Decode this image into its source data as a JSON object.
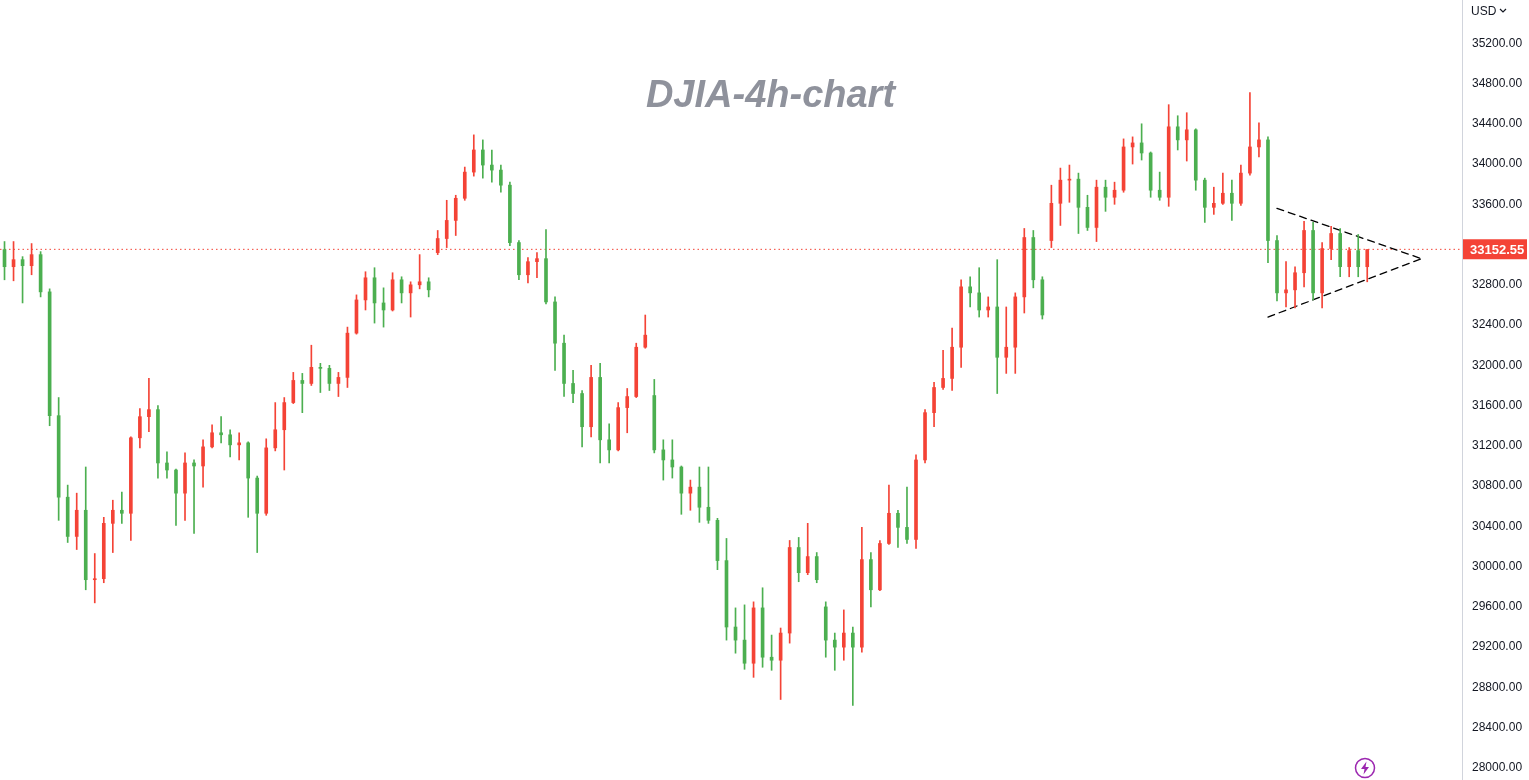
{
  "chart_data": {
    "type": "candlestick",
    "title": "DJIA-4h-chart",
    "ylabel": "USD",
    "categories": [
      null,
      null,
      null,
      null,
      null,
      null,
      null,
      null,
      null,
      null,
      null,
      null,
      null,
      null,
      null,
      null,
      null,
      null,
      null,
      null,
      null,
      null,
      null,
      null,
      null,
      null,
      null,
      null,
      null,
      null,
      null,
      null,
      null,
      null,
      null,
      null,
      null,
      null,
      null,
      null,
      null,
      null,
      null,
      null,
      null,
      null,
      null,
      null,
      null,
      null,
      null,
      null,
      null,
      null,
      null,
      null,
      null,
      null,
      null,
      null,
      null,
      null,
      null,
      null,
      null,
      null,
      null,
      null,
      null,
      null,
      null,
      null,
      null,
      null,
      null,
      null,
      null,
      null,
      null,
      null,
      null,
      null,
      null,
      null,
      null,
      null,
      null,
      null,
      null,
      null,
      null,
      null,
      null,
      null,
      null,
      null,
      null,
      null,
      null,
      null,
      null,
      null,
      null,
      null,
      null,
      null,
      null,
      null,
      null,
      null,
      null,
      null,
      null,
      null,
      null,
      null,
      null,
      null,
      null,
      null,
      null,
      null,
      null,
      null,
      null,
      null,
      null,
      null,
      null,
      null,
      null,
      null,
      null,
      null,
      null,
      null,
      null,
      null,
      null,
      null,
      null,
      null,
      null,
      null,
      null,
      null,
      null,
      null,
      null,
      null,
      null,
      null,
      null,
      null,
      null,
      null,
      null,
      null,
      null,
      null,
      null,
      null
    ],
    "ohlc": [
      [
        33150,
        33230,
        32850,
        32980
      ],
      [
        32980,
        33230,
        32840,
        33050
      ],
      [
        33050,
        33080,
        32620,
        32990
      ],
      [
        32990,
        33210,
        32900,
        33100
      ],
      [
        33100,
        33130,
        32680,
        32730
      ],
      [
        32730,
        32760,
        31400,
        31500
      ],
      [
        31500,
        31680,
        30460,
        30690
      ],
      [
        30690,
        30810,
        30240,
        30300
      ],
      [
        30300,
        30730,
        30170,
        30560
      ],
      [
        30560,
        30990,
        29770,
        29870
      ],
      [
        29870,
        30130,
        29640,
        29880
      ],
      [
        29880,
        30490,
        29840,
        30430
      ],
      [
        30430,
        30660,
        30140,
        30560
      ],
      [
        30560,
        30740,
        30430,
        30530
      ],
      [
        30530,
        31290,
        30260,
        31280
      ],
      [
        31280,
        31570,
        31180,
        31490
      ],
      [
        31490,
        31870,
        31340,
        31560
      ],
      [
        31560,
        31600,
        30880,
        31030
      ],
      [
        31030,
        31140,
        30880,
        30960
      ],
      [
        30960,
        30970,
        30410,
        30730
      ],
      [
        30730,
        31130,
        30460,
        31030
      ],
      [
        31030,
        31060,
        30330,
        31000
      ],
      [
        31000,
        31260,
        30790,
        31190
      ],
      [
        31190,
        31410,
        31180,
        31330
      ],
      [
        31330,
        31490,
        31230,
        31310
      ],
      [
        31310,
        31360,
        31090,
        31210
      ],
      [
        31210,
        31330,
        31060,
        31230
      ],
      [
        31230,
        31240,
        30490,
        30880
      ],
      [
        30880,
        30900,
        30140,
        30530
      ],
      [
        30530,
        31270,
        30510,
        31180
      ],
      [
        31180,
        31630,
        31150,
        31360
      ],
      [
        31360,
        31680,
        30960,
        31630
      ],
      [
        31630,
        31930,
        31620,
        31850
      ],
      [
        31850,
        31920,
        31530,
        31820
      ],
      [
        31820,
        32200,
        31800,
        31980
      ],
      [
        31980,
        32020,
        31730,
        31970
      ],
      [
        31970,
        32000,
        31750,
        31820
      ],
      [
        31820,
        31930,
        31690,
        31880
      ],
      [
        31880,
        32380,
        31780,
        32320
      ],
      [
        32320,
        32700,
        32310,
        32650
      ],
      [
        32650,
        32930,
        32550,
        32870
      ],
      [
        32870,
        32970,
        32420,
        32620
      ],
      [
        32620,
        32770,
        32380,
        32550
      ],
      [
        32550,
        32920,
        32540,
        32850
      ],
      [
        32850,
        32880,
        32620,
        32720
      ],
      [
        32720,
        32830,
        32480,
        32800
      ],
      [
        32800,
        33100,
        32760,
        32830
      ],
      [
        32830,
        32870,
        32680,
        32750
      ],
      [
        33120,
        33340,
        33100,
        33260
      ],
      [
        33260,
        33640,
        33170,
        33440
      ],
      [
        33440,
        33690,
        33290,
        33660
      ],
      [
        33660,
        33970,
        33640,
        33920
      ],
      [
        33920,
        34290,
        33880,
        34140
      ],
      [
        34140,
        34240,
        33860,
        33990
      ],
      [
        33990,
        34140,
        33820,
        33940
      ],
      [
        33940,
        33990,
        33720,
        33790
      ],
      [
        33790,
        33820,
        33190,
        33220
      ],
      [
        33220,
        33240,
        32850,
        32900
      ],
      [
        32900,
        33070,
        32820,
        33030
      ],
      [
        33030,
        33120,
        32870,
        33060
      ],
      [
        33060,
        33350,
        32610,
        32630
      ],
      [
        32630,
        32680,
        31950,
        32220
      ],
      [
        32220,
        32300,
        31690,
        31820
      ],
      [
        31820,
        31950,
        31630,
        31720
      ],
      [
        31720,
        31750,
        31190,
        31390
      ],
      [
        31390,
        32000,
        31290,
        31880
      ],
      [
        31880,
        32020,
        31030,
        31260
      ],
      [
        31260,
        31420,
        31030,
        31160
      ],
      [
        31160,
        31630,
        31150,
        31580
      ],
      [
        31580,
        31770,
        31330,
        31690
      ],
      [
        31690,
        32220,
        31680,
        32180
      ],
      [
        32180,
        32500,
        32170,
        32300
      ],
      [
        31700,
        31860,
        31130,
        31160
      ],
      [
        31160,
        31260,
        30860,
        31060
      ],
      [
        31060,
        31260,
        30880,
        30990
      ],
      [
        30990,
        31000,
        30520,
        30730
      ],
      [
        30730,
        30860,
        30560,
        30790
      ],
      [
        30790,
        30990,
        30440,
        30590
      ],
      [
        30590,
        30990,
        30430,
        30460
      ],
      [
        30460,
        30480,
        29970,
        30060
      ],
      [
        30060,
        30280,
        29270,
        29400
      ],
      [
        29400,
        29590,
        29140,
        29270
      ],
      [
        29270,
        29620,
        28980,
        29040
      ],
      [
        29040,
        29650,
        28900,
        29590
      ],
      [
        29590,
        29790,
        29000,
        29100
      ],
      [
        29100,
        29320,
        28970,
        29070
      ],
      [
        29070,
        29390,
        28680,
        29340
      ],
      [
        29340,
        30260,
        29240,
        30190
      ],
      [
        30190,
        30290,
        29850,
        29940
      ],
      [
        29940,
        30430,
        29920,
        30100
      ],
      [
        30100,
        30140,
        29840,
        29870
      ],
      [
        29600,
        29650,
        29100,
        29270
      ],
      [
        29270,
        29340,
        28970,
        29200
      ],
      [
        29200,
        29570,
        29070,
        29340
      ],
      [
        29340,
        29400,
        28620,
        29200
      ],
      [
        29200,
        30390,
        29150,
        30070
      ],
      [
        30070,
        30140,
        29600,
        29770
      ],
      [
        29770,
        30260,
        29760,
        30230
      ],
      [
        30230,
        30810,
        30220,
        30530
      ],
      [
        30530,
        30560,
        30190,
        30390
      ],
      [
        30390,
        30790,
        30230,
        30270
      ],
      [
        30270,
        31110,
        30180,
        31060
      ],
      [
        31060,
        31560,
        31030,
        31530
      ],
      [
        31530,
        31830,
        31390,
        31780
      ],
      [
        31780,
        32150,
        31760,
        31870
      ],
      [
        31870,
        32370,
        31750,
        32180
      ],
      [
        32180,
        32850,
        31980,
        32780
      ],
      [
        32780,
        32880,
        32580,
        32720
      ],
      [
        32720,
        32970,
        32480,
        32550
      ],
      [
        32550,
        32680,
        32480,
        32580
      ],
      [
        32580,
        33050,
        31720,
        32080
      ],
      [
        32080,
        32580,
        31920,
        32180
      ],
      [
        32180,
        32720,
        31920,
        32680
      ],
      [
        32680,
        33360,
        32520,
        33270
      ],
      [
        33270,
        33340,
        32770,
        32850
      ],
      [
        32850,
        32880,
        32460,
        32500
      ],
      [
        33240,
        33790,
        33170,
        33610
      ],
      [
        33610,
        33960,
        33390,
        33840
      ],
      [
        33840,
        33990,
        33620,
        33850
      ],
      [
        33850,
        33910,
        33310,
        33570
      ],
      [
        33570,
        33690,
        33340,
        33370
      ],
      [
        33370,
        33840,
        33230,
        33770
      ],
      [
        33770,
        33840,
        33530,
        33670
      ],
      [
        33670,
        33820,
        33600,
        33740
      ],
      [
        33740,
        34250,
        33720,
        34170
      ],
      [
        34170,
        34270,
        34000,
        34210
      ],
      [
        34210,
        34400,
        34040,
        34110
      ],
      [
        34110,
        34120,
        33670,
        33740
      ],
      [
        33740,
        33920,
        33640,
        33670
      ],
      [
        33670,
        34590,
        33580,
        34370
      ],
      [
        34370,
        34480,
        34140,
        34240
      ],
      [
        34240,
        34510,
        34030,
        34340
      ],
      [
        34340,
        34350,
        33740,
        33840
      ],
      [
        33840,
        33860,
        33420,
        33570
      ],
      [
        33570,
        33770,
        33500,
        33610
      ],
      [
        33610,
        33910,
        33600,
        33710
      ],
      [
        33710,
        33840,
        33440,
        33610
      ],
      [
        33610,
        33990,
        33590,
        33910
      ],
      [
        33910,
        34710,
        33890,
        34170
      ],
      [
        34170,
        34410,
        34070,
        34240
      ],
      [
        34240,
        34270,
        33020,
        33240
      ],
      [
        33240,
        33290,
        32640,
        32720
      ],
      [
        32720,
        33030,
        32580,
        32750
      ],
      [
        32750,
        32980,
        32570,
        32920
      ],
      [
        32920,
        33430,
        32780,
        33340
      ],
      [
        33340,
        33420,
        32650,
        32720
      ],
      [
        32720,
        33220,
        32570,
        33160
      ],
      [
        33160,
        33380,
        33050,
        33310
      ],
      [
        33310,
        33360,
        32880,
        32980
      ],
      [
        32980,
        33170,
        32880,
        33140
      ],
      [
        33140,
        33300,
        32880,
        32980
      ],
      [
        32980,
        33150,
        32830,
        33150
      ],
      null,
      null,
      null,
      null,
      null,
      null,
      null,
      null,
      null,
      null
    ],
    "colors": [
      "#4caf50",
      "#f44336",
      "#4caf50",
      "#f44336",
      "#4caf50",
      "#4caf50",
      "#4caf50",
      "#4caf50",
      "#f44336",
      "#4caf50",
      "#f44336",
      "#f44336",
      "#f44336",
      "#4caf50",
      "#f44336",
      "#f44336",
      "#f44336",
      "#4caf50",
      "#4caf50",
      "#4caf50",
      "#f44336",
      "#4caf50",
      "#f44336",
      "#f44336",
      "#4caf50",
      "#4caf50",
      "#f44336",
      "#4caf50",
      "#4caf50",
      "#f44336",
      "#f44336",
      "#f44336",
      "#f44336",
      "#4caf50",
      "#f44336",
      "#4caf50",
      "#4caf50",
      "#f44336",
      "#f44336",
      "#f44336",
      "#f44336",
      "#4caf50",
      "#4caf50",
      "#f44336",
      "#4caf50",
      "#f44336",
      "#f44336",
      "#4caf50",
      "#f44336",
      "#f44336",
      "#f44336",
      "#f44336",
      "#f44336",
      "#4caf50",
      "#4caf50",
      "#4caf50",
      "#4caf50",
      "#4caf50",
      "#f44336",
      "#f44336",
      "#4caf50",
      "#4caf50",
      "#4caf50",
      "#4caf50",
      "#4caf50",
      "#f44336",
      "#4caf50",
      "#4caf50",
      "#f44336",
      "#f44336",
      "#f44336",
      "#f44336",
      "#4caf50",
      "#4caf50",
      "#4caf50",
      "#4caf50",
      "#f44336",
      "#4caf50",
      "#4caf50",
      "#4caf50",
      "#4caf50",
      "#4caf50",
      "#4caf50",
      "#f44336",
      "#4caf50",
      "#4caf50",
      "#f44336",
      "#f44336",
      "#4caf50",
      "#f44336",
      "#4caf50",
      "#4caf50",
      "#4caf50",
      "#f44336",
      "#4caf50",
      "#f44336",
      "#4caf50",
      "#f44336",
      "#f44336",
      "#4caf50",
      "#4caf50",
      "#f44336",
      "#f44336",
      "#f44336",
      "#f44336",
      "#f44336",
      "#f44336",
      "#4caf50",
      "#4caf50",
      "#f44336",
      "#4caf50",
      "#f44336",
      "#f44336",
      "#f44336",
      "#4caf50",
      "#4caf50",
      "#f44336",
      "#f44336",
      "#f44336",
      "#4caf50",
      "#4caf50",
      "#f44336",
      "#4caf50",
      "#f44336",
      "#f44336",
      "#f44336",
      "#4caf50",
      "#4caf50",
      "#4caf50",
      "#f44336",
      "#4caf50",
      "#f44336",
      "#4caf50",
      "#4caf50",
      "#f44336",
      "#f44336",
      "#4caf50",
      "#f44336",
      "#f44336",
      "#f44336",
      "#4caf50",
      "#4caf50",
      "#f44336",
      "#f44336",
      "#f44336",
      "#4caf50",
      "#f44336",
      "#f44336",
      "#4caf50",
      "#f44336",
      "#4caf50",
      "#f44336",
      null,
      null,
      null,
      null,
      null,
      null,
      null,
      null,
      null,
      null
    ],
    "series": [
      {
        "type": "line",
        "color": "#000000",
        "line_style": "dashed",
        "marker": "none",
        "values": [
          null,
          null,
          null,
          null,
          null,
          null,
          null,
          null,
          null,
          null,
          null,
          null,
          null,
          null,
          null,
          null,
          null,
          null,
          null,
          null,
          null,
          null,
          null,
          null,
          null,
          null,
          null,
          null,
          null,
          null,
          null,
          null,
          null,
          null,
          null,
          null,
          null,
          null,
          null,
          null,
          null,
          null,
          null,
          null,
          null,
          null,
          null,
          null,
          null,
          null,
          null,
          null,
          null,
          null,
          null,
          null,
          null,
          null,
          null,
          null,
          null,
          null,
          null,
          null,
          null,
          null,
          null,
          null,
          null,
          null,
          null,
          null,
          null,
          null,
          null,
          null,
          null,
          null,
          null,
          null,
          null,
          null,
          null,
          null,
          null,
          null,
          null,
          null,
          null,
          null,
          null,
          null,
          null,
          null,
          null,
          null,
          null,
          null,
          null,
          null,
          null,
          null,
          null,
          null,
          null,
          null,
          null,
          null,
          null,
          null,
          null,
          null,
          null,
          null,
          null,
          null,
          null,
          null,
          null,
          null,
          null,
          null,
          null,
          null,
          null,
          null,
          null,
          null,
          null,
          null,
          null,
          null,
          null,
          null,
          null,
          null,
          null,
          null,
          null,
          null,
          null,
          33560,
          null,
          null,
          null,
          null,
          null,
          null,
          null,
          null,
          null,
          null,
          null,
          null,
          null,
          null,
          null,
          33060,
          null,
          null,
          null,
          null
        ]
      },
      {
        "type": "line",
        "color": "#000000",
        "line_style": "dashed",
        "marker": "none",
        "values": [
          null,
          null,
          null,
          null,
          null,
          null,
          null,
          null,
          null,
          null,
          null,
          null,
          null,
          null,
          null,
          null,
          null,
          null,
          null,
          null,
          null,
          null,
          null,
          null,
          null,
          null,
          null,
          null,
          null,
          null,
          null,
          null,
          null,
          null,
          null,
          null,
          null,
          null,
          null,
          null,
          null,
          null,
          null,
          null,
          null,
          null,
          null,
          null,
          null,
          null,
          null,
          null,
          null,
          null,
          null,
          null,
          null,
          null,
          null,
          null,
          null,
          null,
          null,
          null,
          null,
          null,
          null,
          null,
          null,
          null,
          null,
          null,
          null,
          null,
          null,
          null,
          null,
          null,
          null,
          null,
          null,
          null,
          null,
          null,
          null,
          null,
          null,
          null,
          null,
          null,
          null,
          null,
          null,
          null,
          null,
          null,
          null,
          null,
          null,
          null,
          null,
          null,
          null,
          null,
          null,
          null,
          null,
          null,
          null,
          null,
          null,
          null,
          null,
          null,
          null,
          null,
          null,
          null,
          null,
          null,
          null,
          null,
          null,
          null,
          null,
          null,
          null,
          null,
          null,
          null,
          null,
          null,
          null,
          null,
          null,
          null,
          null,
          null,
          null,
          null,
          32480,
          null,
          null,
          null,
          null,
          null,
          null,
          null,
          null,
          null,
          null,
          null,
          null,
          null,
          null,
          null,
          null,
          33060,
          null,
          null,
          null,
          null
        ]
      }
    ],
    "ylim": [
      27880,
      35630
    ],
    "yticks": [
      {
        "value": 28000,
        "label": "28000.00"
      },
      {
        "value": 28400,
        "label": "28400.00"
      },
      {
        "value": 28800,
        "label": "28800.00"
      },
      {
        "value": 29200,
        "label": "29200.00"
      },
      {
        "value": 29600,
        "label": "29600.00"
      },
      {
        "value": 30000,
        "label": "30000.00"
      },
      {
        "value": 30400,
        "label": "30400.00"
      },
      {
        "value": 30800,
        "label": "30800.00"
      },
      {
        "value": 31200,
        "label": "31200.00"
      },
      {
        "value": 31600,
        "label": "31600.00"
      },
      {
        "value": 32000,
        "label": "32000.00"
      },
      {
        "value": 32400,
        "label": "32400.00"
      },
      {
        "value": 32800,
        "label": "32800.00"
      },
      {
        "value": 33600,
        "label": "33600.00"
      },
      {
        "value": 34000,
        "label": "34000.00"
      },
      {
        "value": 34400,
        "label": "34400.00"
      },
      {
        "value": 34800,
        "label": "34800.00"
      },
      {
        "value": 35200,
        "label": "35200.00"
      }
    ],
    "ref_lines": [
      {
        "axis": "y",
        "value": 33152.55,
        "label": "33152.55",
        "color": "#f44336",
        "line_style": "dotted"
      }
    ],
    "tick_labels": "y"
  }
}
